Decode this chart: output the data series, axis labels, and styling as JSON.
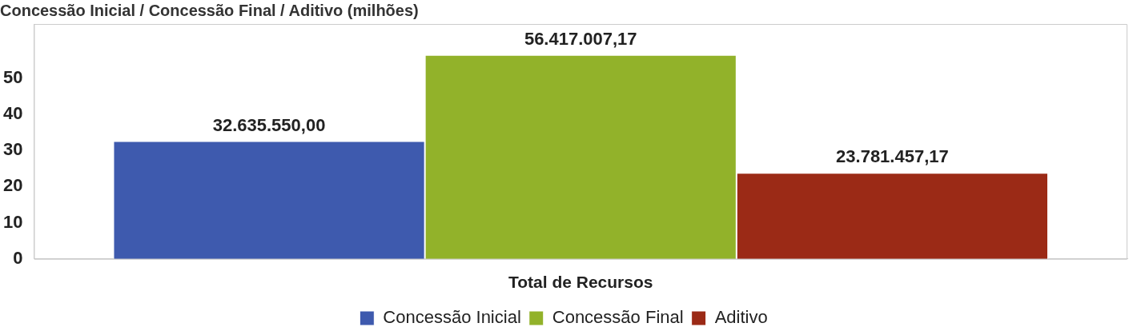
{
  "chart_data": {
    "type": "bar",
    "title": "Concessão Inicial / Concessão Final / Aditivo (milhões)",
    "categories": [
      "Total de Recursos"
    ],
    "series": [
      {
        "name": "Concessão Inicial",
        "color": "#3e5aae",
        "values": [
          32.6
        ]
      },
      {
        "name": "Concessão Final",
        "color": "#92b22a",
        "values": [
          56.4
        ]
      },
      {
        "name": "Aditivo",
        "color": "#9b2a16",
        "values": [
          23.8
        ]
      }
    ],
    "annotations": [
      "32.635.550,00",
      "56.417.007,17",
      "23.781.457,17"
    ],
    "ylim": [
      0,
      65
    ],
    "yticks": [
      0,
      10,
      20,
      30,
      40,
      50
    ],
    "grid": false,
    "legend": "bottom"
  }
}
